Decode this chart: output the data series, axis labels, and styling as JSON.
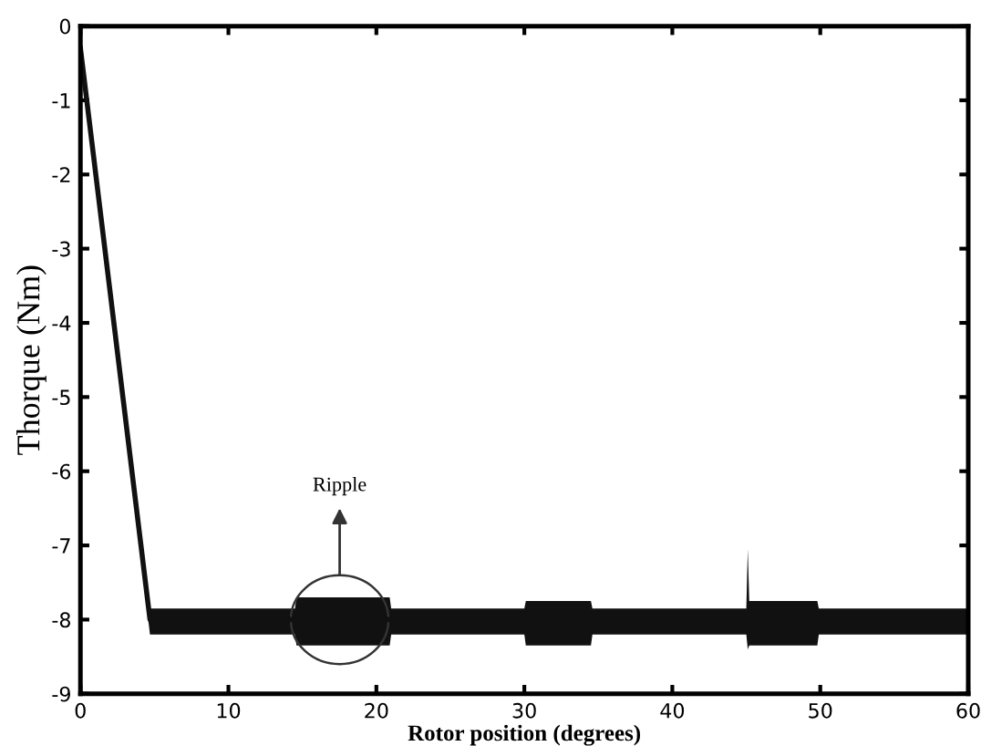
{
  "chart_data": {
    "type": "line",
    "xlabel": "Rotor position (degrees)",
    "ylabel": "Thorque (Nm)",
    "series": [
      {
        "color": "#111111",
        "x": [
          0,
          4.7,
          14.5,
          14.6,
          20.9,
          21.0,
          30.0,
          30.1,
          34.5,
          34.6,
          45.0,
          45.1,
          45.2,
          49.8,
          49.9,
          60
        ],
        "values": [
          -0.3,
          -8.0,
          -8.0,
          -8.0,
          -8.0,
          -8.0,
          -8.0,
          -8.0,
          -8.0,
          -8.0,
          -8.0,
          -8.0,
          -8.0,
          -8.0,
          -8.0,
          -8.0
        ],
        "lower": [
          -0.45,
          -8.2,
          -8.2,
          -8.35,
          -8.35,
          -8.2,
          -8.2,
          -8.35,
          -8.35,
          -8.2,
          -8.2,
          -8.4,
          -8.35,
          -8.35,
          -8.2,
          -8.2
        ],
        "upper": [
          -0.15,
          -7.85,
          -7.85,
          -7.7,
          -7.7,
          -7.85,
          -7.85,
          -7.75,
          -7.75,
          -7.85,
          -7.85,
          -7.05,
          -7.75,
          -7.75,
          -7.85,
          -7.85
        ]
      }
    ],
    "annotations": [
      "Ripple"
    ],
    "xlim": [
      0,
      60
    ],
    "xticks": [
      0,
      10,
      20,
      30,
      40,
      50,
      60
    ],
    "ylim": [
      -9,
      0
    ],
    "yticks": [
      0,
      -1,
      -2,
      -3,
      -4,
      -5,
      -6,
      -7,
      -8,
      -9
    ],
    "grid": false,
    "legend": false
  }
}
